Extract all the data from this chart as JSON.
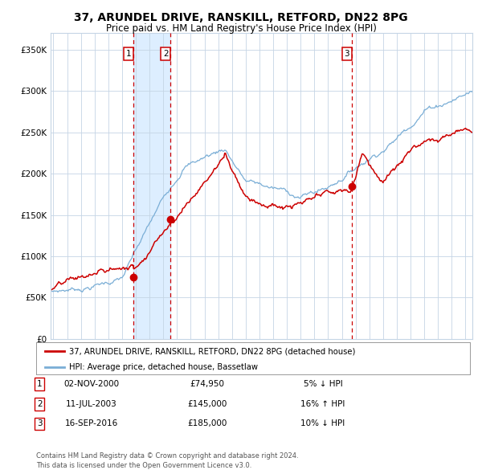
{
  "title": "37, ARUNDEL DRIVE, RANSKILL, RETFORD, DN22 8PG",
  "subtitle": "Price paid vs. HM Land Registry's House Price Index (HPI)",
  "legend_line1": "37, ARUNDEL DRIVE, RANSKILL, RETFORD, DN22 8PG (detached house)",
  "legend_line2": "HPI: Average price, detached house, Bassetlaw",
  "footer1": "Contains HM Land Registry data © Crown copyright and database right 2024.",
  "footer2": "This data is licensed under the Open Government Licence v3.0.",
  "transactions": [
    {
      "num": "1",
      "date": "02-NOV-2000",
      "price": "£74,950",
      "pct": "5%",
      "dir": "↓ HPI"
    },
    {
      "num": "2",
      "date": "11-JUL-2003",
      "price": "£145,000",
      "pct": "16%",
      "dir": "↑ HPI"
    },
    {
      "num": "3",
      "date": "16-SEP-2016",
      "price": "£185,000",
      "pct": "10%",
      "dir": "↓ HPI"
    }
  ],
  "transaction_years": [
    2000.84,
    2003.53,
    2016.71
  ],
  "transaction_prices": [
    74950,
    145000,
    185000
  ],
  "red_line_color": "#cc0000",
  "blue_line_color": "#7aaed6",
  "dot_color": "#cc0000",
  "dashed_line_color": "#cc0000",
  "shade_color": "#ddeeff",
  "grid_color": "#c5d5e5",
  "background_color": "#ffffff",
  "ylim": [
    0,
    370000
  ],
  "xlim_start": 1994.8,
  "xlim_end": 2025.5,
  "yticks": [
    0,
    50000,
    100000,
    150000,
    200000,
    250000,
    300000,
    350000
  ],
  "ytick_labels": [
    "£0",
    "£50K",
    "£100K",
    "£150K",
    "£200K",
    "£250K",
    "£300K",
    "£350K"
  ],
  "xticks": [
    1995,
    1996,
    1997,
    1998,
    1999,
    2000,
    2001,
    2002,
    2003,
    2004,
    2005,
    2006,
    2007,
    2008,
    2009,
    2010,
    2011,
    2012,
    2013,
    2014,
    2015,
    2016,
    2017,
    2018,
    2019,
    2020,
    2021,
    2022,
    2023,
    2024,
    2025
  ]
}
